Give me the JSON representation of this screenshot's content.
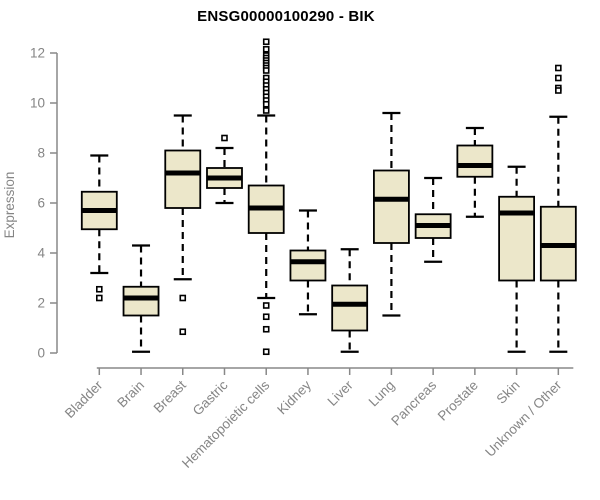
{
  "title": "ENSG00000100290 - BIK",
  "chart_data": {
    "type": "boxplot",
    "title": "ENSG00000100290 - BIK",
    "xlabel": "",
    "ylabel": "Expression",
    "ylim": [
      0,
      12
    ],
    "yticks": [
      0,
      2,
      4,
      6,
      8,
      10,
      12
    ],
    "grid": false,
    "legend": "none",
    "categories": [
      "Bladder",
      "Brain",
      "Breast",
      "Gastric",
      "Hematopoietic cells",
      "Kidney",
      "Liver",
      "Lung",
      "Pancreas",
      "Prostate",
      "Skin",
      "Unknown / Other"
    ],
    "boxes": [
      {
        "category": "Bladder",
        "whisker_low": 3.2,
        "q1": 4.95,
        "median": 5.7,
        "q3": 6.45,
        "whisker_high": 7.9,
        "outliers": [
          2.55,
          2.2
        ]
      },
      {
        "category": "Brain",
        "whisker_low": 0.05,
        "q1": 1.5,
        "median": 2.2,
        "q3": 2.65,
        "whisker_high": 4.3,
        "outliers": []
      },
      {
        "category": "Breast",
        "whisker_low": 2.95,
        "q1": 5.8,
        "median": 7.2,
        "q3": 8.1,
        "whisker_high": 9.5,
        "outliers": [
          2.2,
          0.85
        ]
      },
      {
        "category": "Gastric",
        "whisker_low": 6.0,
        "q1": 6.6,
        "median": 7.0,
        "q3": 7.4,
        "whisker_high": 8.2,
        "outliers": [
          8.6
        ]
      },
      {
        "category": "Hematopoietic cells",
        "whisker_low": 2.2,
        "q1": 4.8,
        "median": 5.8,
        "q3": 6.7,
        "whisker_high": 9.5,
        "outliers": [
          12.45,
          12.15,
          11.9,
          11.8,
          11.7,
          11.6,
          11.5,
          11.4,
          11.3,
          11.0,
          10.85,
          10.7,
          10.55,
          10.4,
          10.25,
          10.1,
          9.95,
          9.7,
          1.9,
          1.45,
          0.95,
          0.05
        ]
      },
      {
        "category": "Kidney",
        "whisker_low": 1.55,
        "q1": 2.9,
        "median": 3.65,
        "q3": 4.1,
        "whisker_high": 5.7,
        "outliers": []
      },
      {
        "category": "Liver",
        "whisker_low": 0.05,
        "q1": 0.9,
        "median": 1.95,
        "q3": 2.7,
        "whisker_high": 4.15,
        "outliers": []
      },
      {
        "category": "Lung",
        "whisker_low": 1.5,
        "q1": 4.4,
        "median": 6.15,
        "q3": 7.3,
        "whisker_high": 9.6,
        "outliers": []
      },
      {
        "category": "Pancreas",
        "whisker_low": 3.65,
        "q1": 4.6,
        "median": 5.1,
        "q3": 5.55,
        "whisker_high": 7.0,
        "outliers": []
      },
      {
        "category": "Prostate",
        "whisker_low": 5.45,
        "q1": 7.05,
        "median": 7.5,
        "q3": 8.3,
        "whisker_high": 9.0,
        "outliers": []
      },
      {
        "category": "Skin",
        "whisker_low": 0.05,
        "q1": 2.9,
        "median": 5.6,
        "q3": 6.25,
        "whisker_high": 7.45,
        "outliers": []
      },
      {
        "category": "Unknown / Other",
        "whisker_low": 0.05,
        "q1": 2.9,
        "median": 4.3,
        "q3": 5.85,
        "whisker_high": 9.45,
        "outliers": [
          11.4,
          11.0,
          10.6,
          10.5
        ]
      }
    ],
    "style": {
      "box_fill": "#ece7ca",
      "box_stroke": "#000000",
      "median_color": "#000000",
      "whisker_color": "#000000",
      "outlier_color": "#000000",
      "axis_color": "#888888",
      "tick_label_color": "#858585",
      "title_color": "#000000",
      "background": "#ffffff"
    }
  }
}
